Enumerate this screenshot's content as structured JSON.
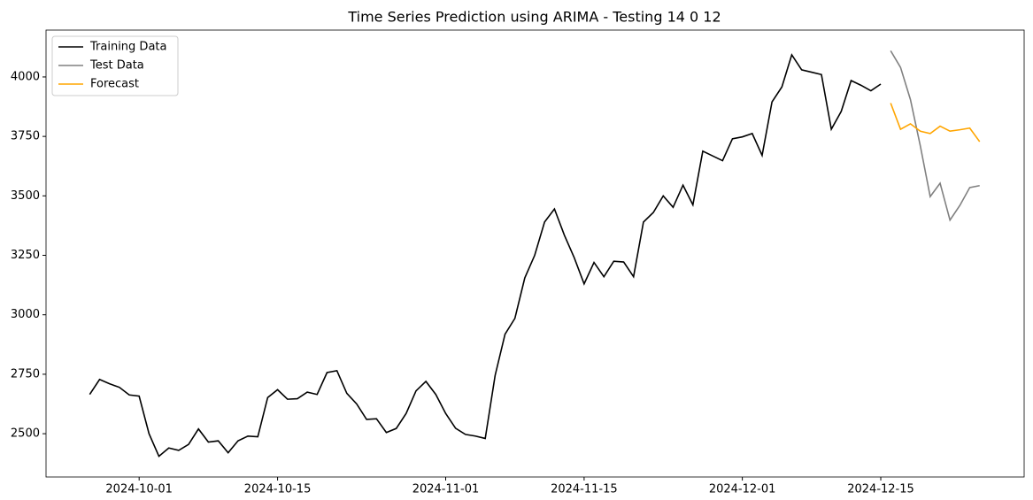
{
  "chart_data": {
    "type": "line",
    "title": "Time Series Prediction using ARIMA - Testing 14 0 12",
    "xlim": [
      "2024-09-21T14:00",
      "2024-12-29T12:00"
    ],
    "xticks": [
      "2024-10-01",
      "2024-10-15",
      "2024-11-01",
      "2024-11-15",
      "2024-12-01",
      "2024-12-15"
    ],
    "ylim": [
      2318,
      4197
    ],
    "yticks": [
      2500,
      2750,
      3000,
      3250,
      3500,
      3750,
      4000
    ],
    "legend": "upper left",
    "series": [
      {
        "name": "Training Data",
        "color": "#000000",
        "x": [
          "2024-09-26",
          "2024-09-27",
          "2024-09-28",
          "2024-09-29",
          "2024-09-30",
          "2024-10-01",
          "2024-10-02",
          "2024-10-03",
          "2024-10-04",
          "2024-10-05",
          "2024-10-06",
          "2024-10-07",
          "2024-10-08",
          "2024-10-09",
          "2024-10-10",
          "2024-10-11",
          "2024-10-12",
          "2024-10-13",
          "2024-10-14",
          "2024-10-15",
          "2024-10-16",
          "2024-10-17",
          "2024-10-18",
          "2024-10-19",
          "2024-10-20",
          "2024-10-21",
          "2024-10-22",
          "2024-10-23",
          "2024-10-24",
          "2024-10-25",
          "2024-10-26",
          "2024-10-27",
          "2024-10-28",
          "2024-10-29",
          "2024-10-30",
          "2024-10-31",
          "2024-11-01",
          "2024-11-02",
          "2024-11-03",
          "2024-11-04",
          "2024-11-05",
          "2024-11-06",
          "2024-11-07",
          "2024-11-08",
          "2024-11-09",
          "2024-11-10",
          "2024-11-11",
          "2024-11-12",
          "2024-11-13",
          "2024-11-14",
          "2024-11-15",
          "2024-11-16",
          "2024-11-17",
          "2024-11-18",
          "2024-11-19",
          "2024-11-20",
          "2024-11-21",
          "2024-11-22",
          "2024-11-23",
          "2024-11-24",
          "2024-11-25",
          "2024-11-26",
          "2024-11-27",
          "2024-11-28",
          "2024-11-29",
          "2024-11-30",
          "2024-12-01",
          "2024-12-02",
          "2024-12-03",
          "2024-12-04",
          "2024-12-05",
          "2024-12-06",
          "2024-12-07",
          "2024-12-08",
          "2024-12-09",
          "2024-12-10",
          "2024-12-11",
          "2024-12-12",
          "2024-12-13",
          "2024-12-14",
          "2024-12-15"
        ],
        "values": [
          2665,
          2728,
          2710,
          2695,
          2663,
          2658,
          2500,
          2405,
          2440,
          2430,
          2455,
          2520,
          2465,
          2470,
          2420,
          2470,
          2490,
          2487,
          2652,
          2685,
          2645,
          2647,
          2675,
          2665,
          2757,
          2765,
          2670,
          2625,
          2560,
          2563,
          2505,
          2522,
          2585,
          2680,
          2720,
          2665,
          2585,
          2523,
          2497,
          2490,
          2480,
          2745,
          2918,
          2985,
          3155,
          3250,
          3390,
          3445,
          3335,
          3240,
          3130,
          3220,
          3160,
          3225,
          3222,
          3160,
          3390,
          3430,
          3500,
          3452,
          3545,
          3462,
          3688,
          3668,
          3648,
          3740,
          3748,
          3762,
          3670,
          3895,
          3958,
          4093,
          4030,
          4020,
          4010,
          3780,
          3855,
          3985,
          3965,
          3942,
          3970
        ]
      },
      {
        "name": "Test Data",
        "color": "#808080",
        "x": [
          "2024-12-16",
          "2024-12-17",
          "2024-12-18",
          "2024-12-19",
          "2024-12-20",
          "2024-12-21",
          "2024-12-22",
          "2024-12-23",
          "2024-12-24",
          "2024-12-25"
        ],
        "values": [
          4110,
          4040,
          3905,
          3710,
          3497,
          3553,
          3398,
          3460,
          3535,
          3543
        ]
      },
      {
        "name": "Forecast",
        "color": "#ffa500",
        "x": [
          "2024-12-16",
          "2024-12-17",
          "2024-12-18",
          "2024-12-19",
          "2024-12-20",
          "2024-12-21",
          "2024-12-22",
          "2024-12-23",
          "2024-12-24",
          "2024-12-25"
        ],
        "values": [
          3890,
          3780,
          3803,
          3772,
          3762,
          3793,
          3772,
          3778,
          3785,
          3728
        ]
      }
    ]
  }
}
